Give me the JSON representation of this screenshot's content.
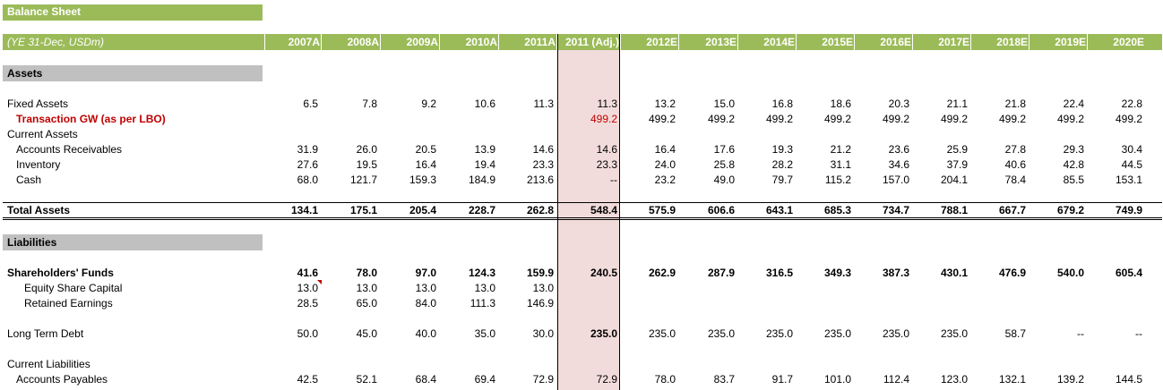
{
  "sheet": {
    "title": "Balance Sheet",
    "unit_label": "(YE 31-Dec, USDm)",
    "years": [
      "2007A",
      "2008A",
      "2009A",
      "2010A",
      "2011A",
      "2011 (Adj.)",
      "2012E",
      "2013E",
      "2014E",
      "2015E",
      "2016E",
      "2017E",
      "2018E",
      "2019E",
      "2020E"
    ]
  },
  "sections": {
    "assets": "Assets",
    "liabilities": "Liabilities"
  },
  "rows": [
    {
      "label": "Fixed Assets",
      "values": [
        "6.5",
        "7.8",
        "9.2",
        "10.6",
        "11.3",
        "11.3",
        "13.2",
        "15.0",
        "16.8",
        "18.6",
        "20.3",
        "21.1",
        "21.8",
        "22.4",
        "22.8"
      ]
    },
    {
      "label": "Transaction GW (as per LBO)",
      "values": [
        "",
        "",
        "",
        "",
        "",
        "499.2",
        "499.2",
        "499.2",
        "499.2",
        "499.2",
        "499.2",
        "499.2",
        "499.2",
        "499.2",
        "499.2"
      ]
    },
    {
      "label": "Current Assets",
      "values": [
        "",
        "",
        "",
        "",
        "",
        "",
        "",
        "",
        "",
        "",
        "",
        "",
        "",
        "",
        ""
      ]
    },
    {
      "label": "Accounts Receivables",
      "values": [
        "31.9",
        "26.0",
        "20.5",
        "13.9",
        "14.6",
        "14.6",
        "16.4",
        "17.6",
        "19.3",
        "21.2",
        "23.6",
        "25.9",
        "27.8",
        "29.3",
        "30.4"
      ]
    },
    {
      "label": "Inventory",
      "values": [
        "27.6",
        "19.5",
        "16.4",
        "19.4",
        "23.3",
        "23.3",
        "24.0",
        "25.8",
        "28.2",
        "31.1",
        "34.6",
        "37.9",
        "40.6",
        "42.8",
        "44.5"
      ]
    },
    {
      "label": "Cash",
      "values": [
        "68.0",
        "121.7",
        "159.3",
        "184.9",
        "213.6",
        "--",
        "23.2",
        "49.0",
        "79.7",
        "115.2",
        "157.0",
        "204.1",
        "78.4",
        "85.5",
        "153.1"
      ]
    },
    {
      "label": "Total Assets",
      "values": [
        "134.1",
        "175.1",
        "205.4",
        "228.7",
        "262.8",
        "548.4",
        "575.9",
        "606.6",
        "643.1",
        "685.3",
        "734.7",
        "788.1",
        "667.7",
        "679.2",
        "749.9"
      ]
    },
    {
      "label": "Shareholders' Funds",
      "values": [
        "41.6",
        "78.0",
        "97.0",
        "124.3",
        "159.9",
        "240.5",
        "262.9",
        "287.9",
        "316.5",
        "349.3",
        "387.3",
        "430.1",
        "476.9",
        "540.0",
        "605.4"
      ]
    },
    {
      "label": "Equity Share Capital",
      "values": [
        "13.0",
        "13.0",
        "13.0",
        "13.0",
        "13.0",
        "",
        "",
        "",
        "",
        "",
        "",
        "",
        "",
        "",
        ""
      ]
    },
    {
      "label": "Retained Earnings",
      "values": [
        "28.5",
        "65.0",
        "84.0",
        "111.3",
        "146.9",
        "",
        "",
        "",
        "",
        "",
        "",
        "",
        "",
        "",
        ""
      ]
    },
    {
      "label": "Long Term Debt",
      "values": [
        "50.0",
        "45.0",
        "40.0",
        "35.0",
        "30.0",
        "235.0",
        "235.0",
        "235.0",
        "235.0",
        "235.0",
        "235.0",
        "235.0",
        "58.7",
        "--",
        "--"
      ]
    },
    {
      "label": "Current Liabilities",
      "values": [
        "",
        "",
        "",
        "",
        "",
        "",
        "",
        "",
        "",
        "",
        "",
        "",
        "",
        "",
        ""
      ]
    },
    {
      "label": "Accounts Payables",
      "values": [
        "42.5",
        "52.1",
        "68.4",
        "69.4",
        "72.9",
        "72.9",
        "78.0",
        "83.7",
        "91.7",
        "101.0",
        "112.4",
        "123.0",
        "132.1",
        "139.2",
        "144.5"
      ]
    }
  ]
}
